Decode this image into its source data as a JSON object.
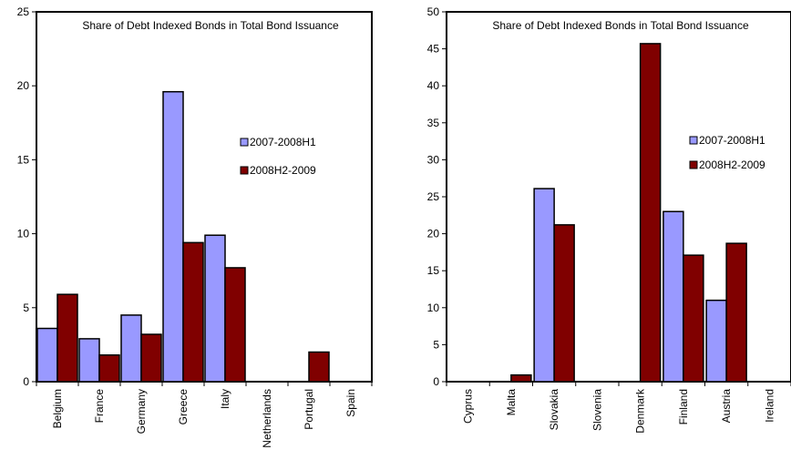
{
  "chart_data": [
    {
      "type": "bar",
      "title": "Share of Debt Indexed Bonds in Total Bond Issuance",
      "xlabel": "",
      "ylabel": "",
      "ylim": [
        0,
        25
      ],
      "yticks": [
        "0",
        "5",
        "10",
        "15",
        "20",
        "25"
      ],
      "categories": [
        "Belgium",
        "France",
        "Germany",
        "Greece",
        "Italy",
        "Netherlands",
        "Portugal",
        "Spain"
      ],
      "series": [
        {
          "name": "2007-2008H1",
          "color": "#9999ff",
          "values": [
            3.6,
            2.9,
            4.5,
            19.6,
            9.9,
            0,
            0,
            0
          ]
        },
        {
          "name": "2008H2-2009",
          "color": "#800000",
          "values": [
            5.9,
            1.8,
            3.2,
            9.4,
            7.7,
            0,
            2.0,
            0
          ]
        }
      ],
      "grid": false,
      "legend": "right"
    },
    {
      "type": "bar",
      "title": "Share of Debt Indexed Bonds in Total Bond Issuance",
      "xlabel": "",
      "ylabel": "",
      "ylim": [
        0,
        50
      ],
      "yticks": [
        "0",
        "5",
        "10",
        "15",
        "20",
        "25",
        "30",
        "35",
        "40",
        "45",
        "50"
      ],
      "categories": [
        "Cyprus",
        "Malta",
        "Slovakia",
        "Slovenia",
        "Denmark",
        "Finland",
        "Austria",
        "Ireland"
      ],
      "series": [
        {
          "name": "2007-2008H1",
          "color": "#9999ff",
          "values": [
            0,
            0,
            26.1,
            0,
            0,
            23.0,
            11.0,
            0
          ]
        },
        {
          "name": "2008H2-2009",
          "color": "#800000",
          "values": [
            0,
            0.9,
            21.2,
            0,
            45.7,
            17.1,
            18.7,
            0
          ]
        }
      ],
      "grid": false,
      "legend": "right"
    }
  ]
}
